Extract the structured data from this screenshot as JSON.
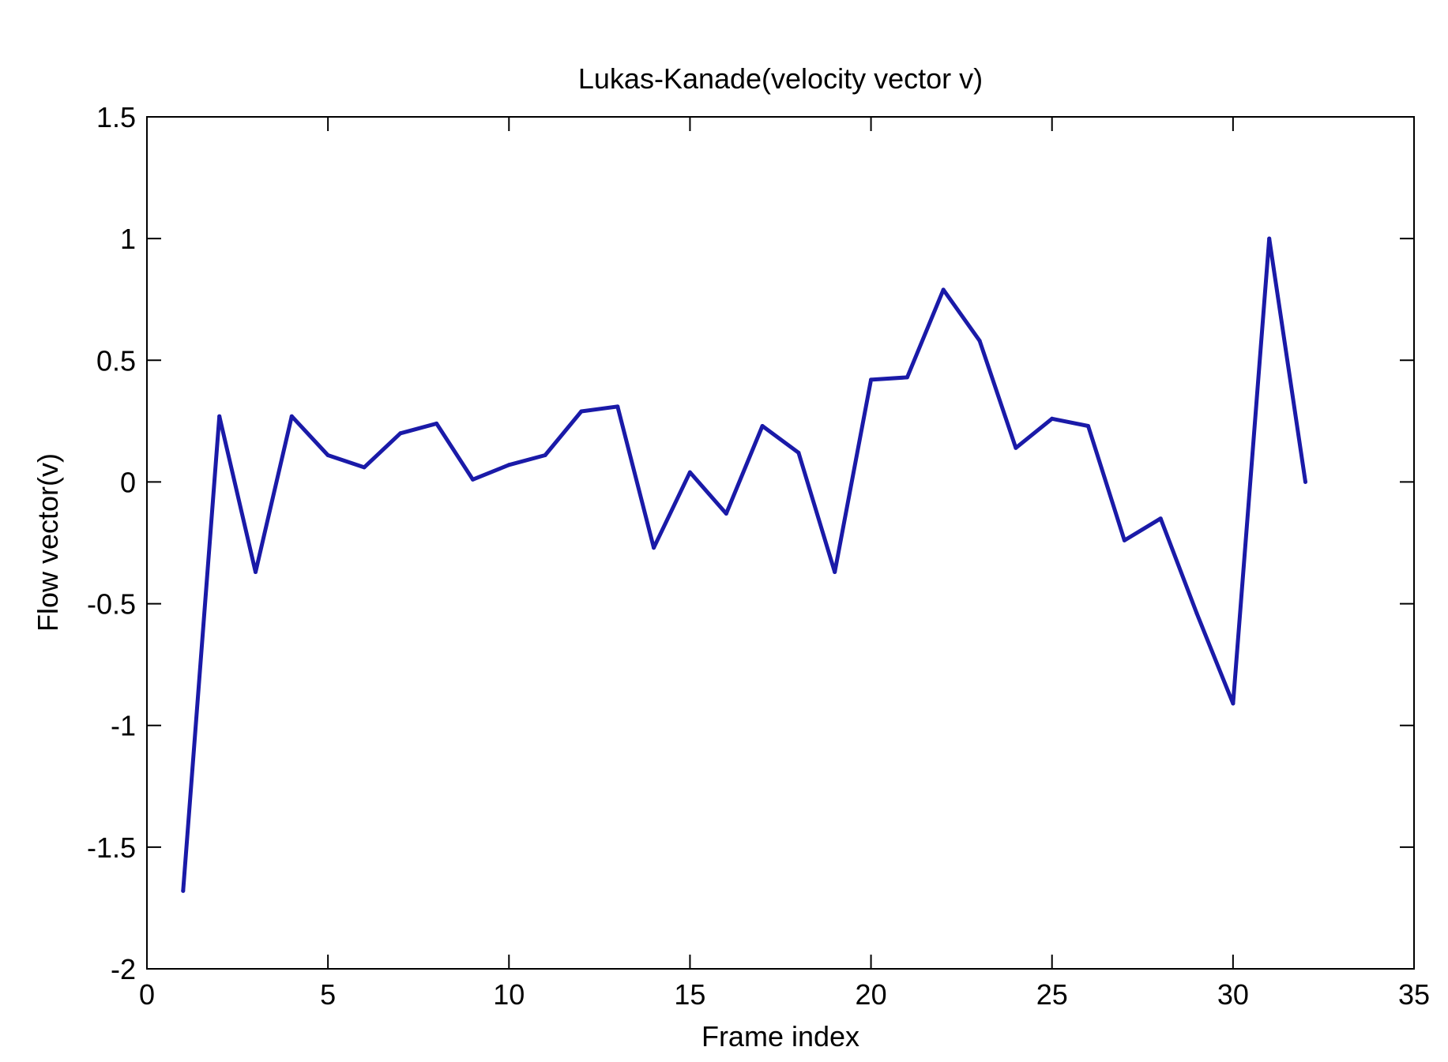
{
  "chart_data": {
    "type": "line",
    "title": "Lukas-Kanade(velocity vector v)",
    "xlabel": "Frame index",
    "ylabel": "Flow vector(v)",
    "xlim": [
      0,
      35
    ],
    "ylim": [
      -2,
      1.5
    ],
    "xticks": [
      0,
      5,
      10,
      15,
      20,
      25,
      30,
      35
    ],
    "yticks": [
      -2,
      -1.5,
      -1,
      -0.5,
      0,
      0.5,
      1,
      1.5
    ],
    "grid": false,
    "colors": {
      "line": "#1a1aa8",
      "axis": "#000000",
      "background": "#ffffff"
    },
    "series": [
      {
        "x": [
          1,
          2,
          3,
          4,
          5,
          6,
          7,
          8,
          9,
          10,
          11,
          12,
          13,
          14,
          15,
          16,
          17,
          18,
          19,
          20,
          21,
          22,
          23,
          24,
          25,
          26,
          27,
          28,
          29,
          30,
          31,
          32
        ],
        "values": [
          -1.68,
          0.27,
          -0.37,
          0.27,
          0.11,
          0.06,
          0.2,
          0.24,
          0.01,
          0.07,
          0.11,
          0.29,
          0.31,
          -0.27,
          0.04,
          -0.13,
          0.23,
          0.12,
          -0.37,
          0.42,
          0.43,
          0.79,
          0.58,
          0.14,
          0.26,
          0.23,
          -0.24,
          -0.15,
          -0.54,
          -0.91,
          1.0,
          0.0
        ]
      }
    ]
  }
}
